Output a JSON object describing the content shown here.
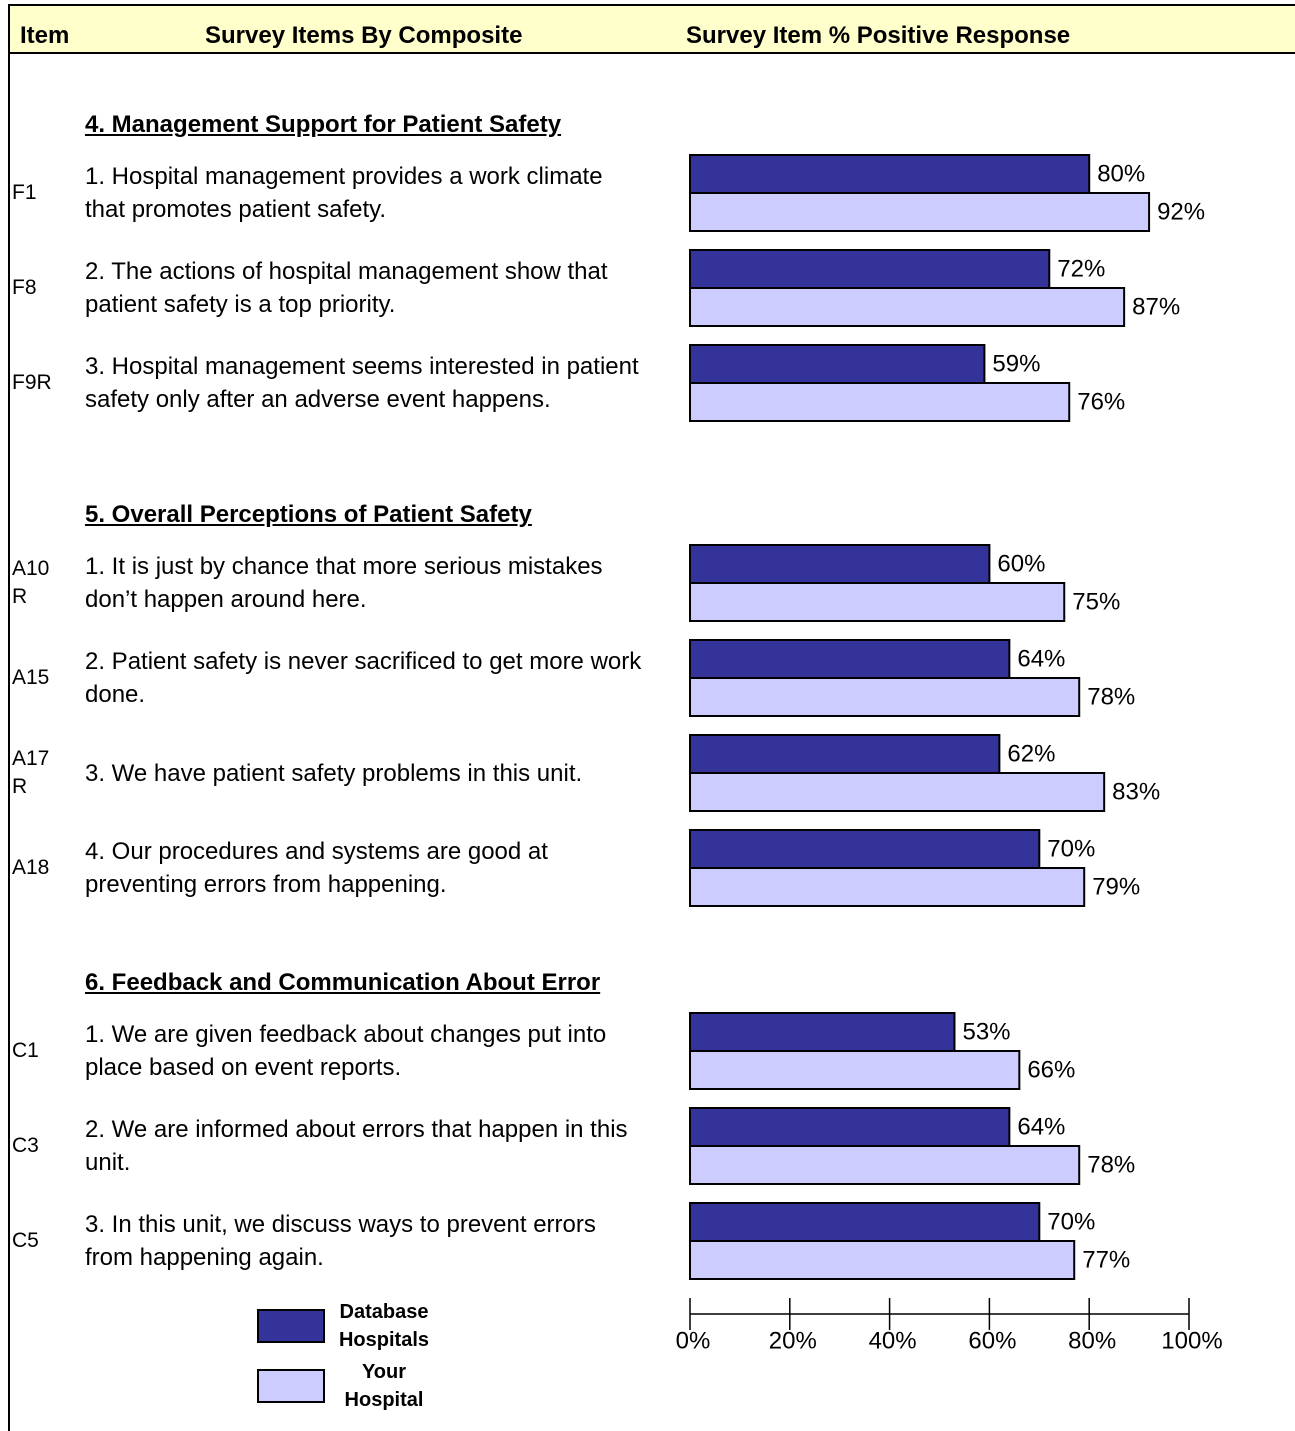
{
  "header": {
    "item": "Item",
    "survey_items": "Survey Items By Composite",
    "response": "Survey Item % Positive Response"
  },
  "sections": [
    {
      "title": "4.  Management Support for Patient Safety",
      "items": [
        "1. Hospital management provides a work climate that promotes patient safety.",
        "2. The actions of hospital management show that patient safety is a top priority.",
        "3. Hospital management seems interested in patient safety only after an adverse event happens."
      ]
    },
    {
      "title": "5.  Overall Perceptions of Patient Safety",
      "items": [
        "1. It is just by chance that more serious mistakes don’t happen around here.",
        "2. Patient safety is never sacrificed to get more work done.",
        "3. We have patient safety problems in this unit.",
        "4. Our procedures and systems are good at preventing errors from happening."
      ]
    },
    {
      "title": "6.  Feedback and Communication About Error",
      "items": [
        "1. We are given feedback about changes put into place based on event reports.",
        "2. We are informed about errors that happen in this unit.",
        "3. In this unit, we discuss ways to prevent errors from happening again."
      ]
    }
  ],
  "chart_data": {
    "type": "bar",
    "orientation": "horizontal",
    "categories": [
      "F1",
      "F8",
      "F9R",
      "A10R",
      "A15",
      "A17R",
      "A18",
      "C1",
      "C3",
      "C5"
    ],
    "series": [
      {
        "name": "Database Hospitals",
        "color": "#333399",
        "values": [
          80,
          72,
          59,
          60,
          64,
          62,
          70,
          53,
          64,
          70
        ],
        "value_labels": [
          "80%",
          "72%",
          "59%",
          "60%",
          "64%",
          "62%",
          "70%",
          "53%",
          "64%",
          "70%"
        ]
      },
      {
        "name": "Your Hospital",
        "color": "#ccccff",
        "values": [
          92,
          87,
          76,
          75,
          78,
          83,
          79,
          66,
          78,
          77
        ],
        "value_labels": [
          "92%",
          "87%",
          "76%",
          "75%",
          "78%",
          "83%",
          "79%",
          "66%",
          "78%",
          "77%"
        ]
      }
    ],
    "xlim": [
      0,
      100
    ],
    "xticks": [
      {
        "value": 0,
        "label": "0%"
      },
      {
        "value": 20,
        "label": "20%"
      },
      {
        "value": 40,
        "label": "40%"
      },
      {
        "value": 60,
        "label": "60%"
      },
      {
        "value": 80,
        "label": "80%"
      },
      {
        "value": 100,
        "label": "100%"
      }
    ]
  }
}
